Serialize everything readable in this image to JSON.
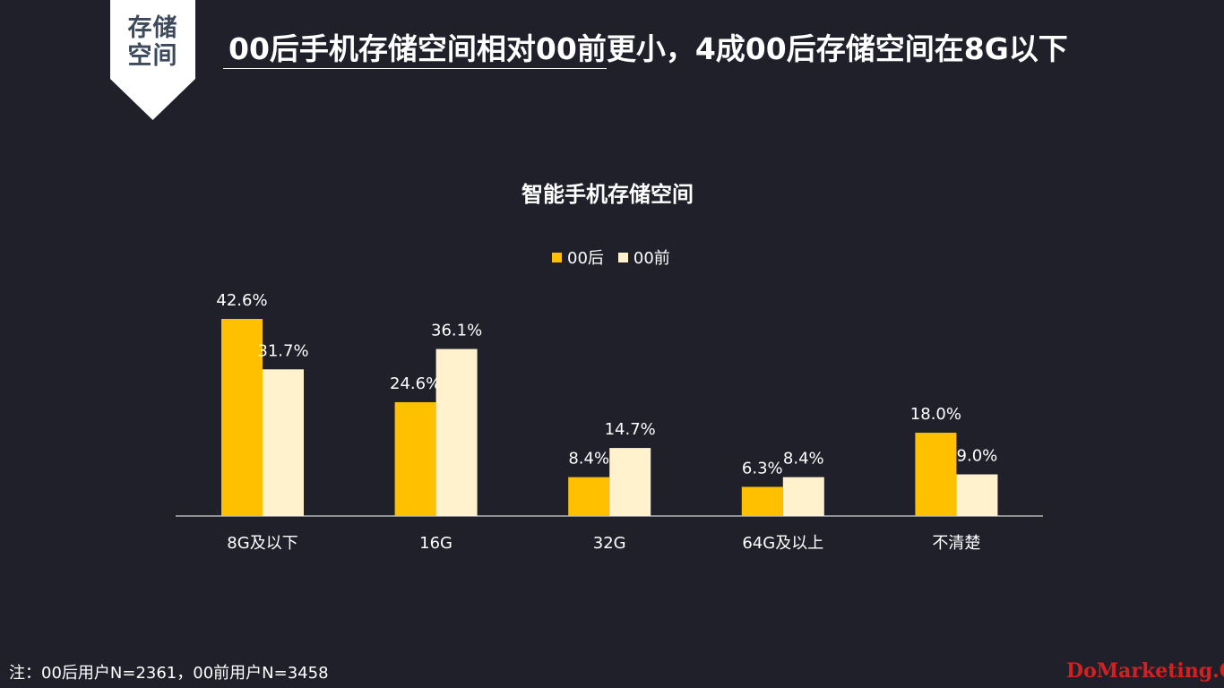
{
  "badge": {
    "line1": "存储",
    "line2": "空间"
  },
  "slide_title": "00后手机存储空间相对00前更小，4成00后存储空间在8G以下",
  "footnote": "注：00后用户N=2361，00前用户N=3458",
  "watermark": "DoMarketing.Org",
  "colors": {
    "background": "#20202a",
    "series_00hou": "#ffc000",
    "series_00qian": "#fff2cc",
    "badge_bg": "#ffffff",
    "badge_text": "#3d4a5c"
  },
  "chart_data": {
    "type": "bar",
    "title": "智能手机存储空间",
    "categories": [
      "8G及以下",
      "16G",
      "32G",
      "64G及以上",
      "不清楚"
    ],
    "series": [
      {
        "name": "00后",
        "color": "#ffc000",
        "values": [
          42.6,
          24.6,
          8.4,
          6.3,
          18.0
        ],
        "labels": [
          "42.6%",
          "24.6%",
          "8.4%",
          "6.3%",
          "18.0%"
        ]
      },
      {
        "name": "00前",
        "color": "#fff2cc",
        "values": [
          31.7,
          36.1,
          14.7,
          8.4,
          9.0
        ],
        "labels": [
          "31.7%",
          "36.1%",
          "14.7%",
          "8.4%",
          "9.0%"
        ]
      }
    ],
    "ylim": [
      0,
      45
    ],
    "unit": "%",
    "legend": "top-center",
    "grid": false
  }
}
